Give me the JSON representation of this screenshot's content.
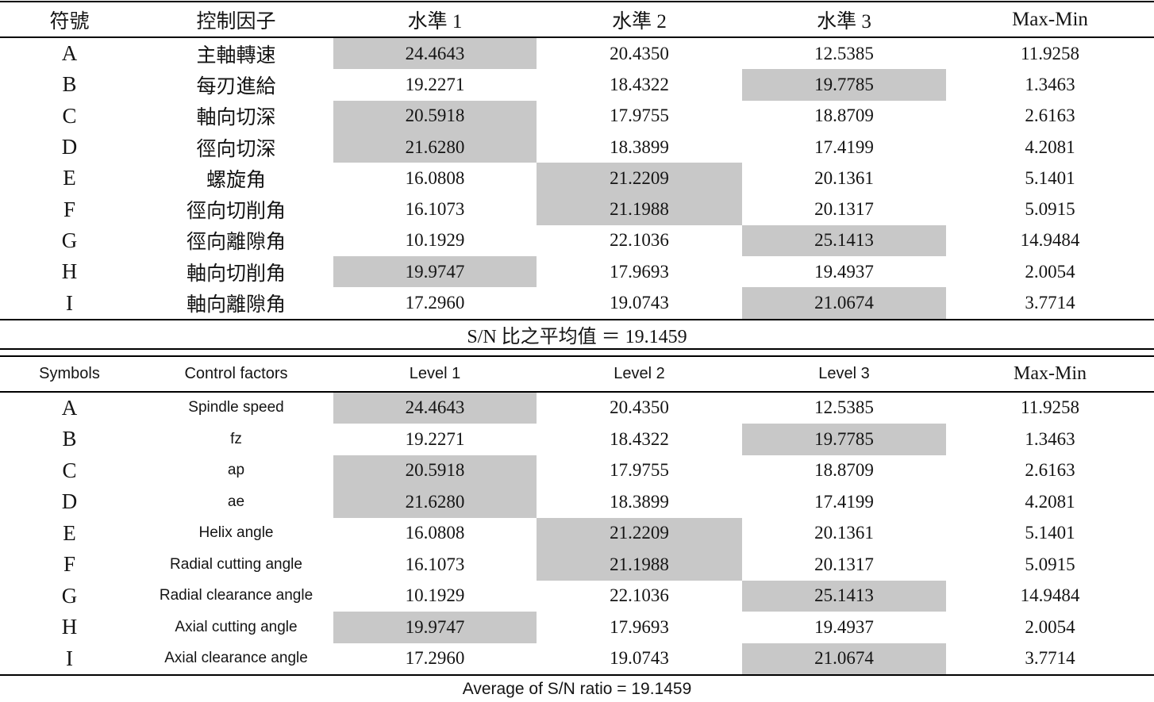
{
  "highlight_color": "#c8c8c8",
  "tables": {
    "cn": {
      "headers": [
        "符號",
        "控制因子",
        "水準 1",
        "水準 2",
        "水準 3",
        "Max-Min"
      ],
      "rows": [
        {
          "symbol": "A",
          "factor": "主軸轉速",
          "levels": [
            "24.4643",
            "20.4350",
            "12.5385"
          ],
          "max_min": "11.9258",
          "highlight_level": 1
        },
        {
          "symbol": "B",
          "factor": "每刃進給",
          "levels": [
            "19.2271",
            "18.4322",
            "19.7785"
          ],
          "max_min": "1.3463",
          "highlight_level": 3
        },
        {
          "symbol": "C",
          "factor": "軸向切深",
          "levels": [
            "20.5918",
            "17.9755",
            "18.8709"
          ],
          "max_min": "2.6163",
          "highlight_level": 1
        },
        {
          "symbol": "D",
          "factor": "徑向切深",
          "levels": [
            "21.6280",
            "18.3899",
            "17.4199"
          ],
          "max_min": "4.2081",
          "highlight_level": 1
        },
        {
          "symbol": "E",
          "factor": "螺旋角",
          "levels": [
            "16.0808",
            "21.2209",
            "20.1361"
          ],
          "max_min": "5.1401",
          "highlight_level": 2
        },
        {
          "symbol": "F",
          "factor": "徑向切削角",
          "levels": [
            "16.1073",
            "21.1988",
            "20.1317"
          ],
          "max_min": "5.0915",
          "highlight_level": 2
        },
        {
          "symbol": "G",
          "factor": "徑向離隙角",
          "levels": [
            "10.1929",
            "22.1036",
            "25.1413"
          ],
          "max_min": "14.9484",
          "highlight_level": 3
        },
        {
          "symbol": "H",
          "factor": "軸向切削角",
          "levels": [
            "19.9747",
            "17.9693",
            "19.4937"
          ],
          "max_min": "2.0054",
          "highlight_level": 1
        },
        {
          "symbol": "I",
          "factor": "軸向離隙角",
          "levels": [
            "17.2960",
            "19.0743",
            "21.0674"
          ],
          "max_min": "3.7714",
          "highlight_level": 3
        }
      ],
      "footer": "S/N 比之平均值 ＝ 19.1459"
    },
    "en": {
      "headers": [
        "Symbols",
        "Control factors",
        "Level 1",
        "Level 2",
        "Level 3",
        "Max-Min"
      ],
      "rows": [
        {
          "symbol": "A",
          "factor": "Spindle speed",
          "levels": [
            "24.4643",
            "20.4350",
            "12.5385"
          ],
          "max_min": "11.9258",
          "highlight_level": 1
        },
        {
          "symbol": "B",
          "factor": "fz",
          "levels": [
            "19.2271",
            "18.4322",
            "19.7785"
          ],
          "max_min": "1.3463",
          "highlight_level": 3
        },
        {
          "symbol": "C",
          "factor": "ap",
          "levels": [
            "20.5918",
            "17.9755",
            "18.8709"
          ],
          "max_min": "2.6163",
          "highlight_level": 1
        },
        {
          "symbol": "D",
          "factor": "ae",
          "levels": [
            "21.6280",
            "18.3899",
            "17.4199"
          ],
          "max_min": "4.2081",
          "highlight_level": 1
        },
        {
          "symbol": "E",
          "factor": "Helix angle",
          "levels": [
            "16.0808",
            "21.2209",
            "20.1361"
          ],
          "max_min": "5.1401",
          "highlight_level": 2
        },
        {
          "symbol": "F",
          "factor": "Radial cutting angle",
          "levels": [
            "16.1073",
            "21.1988",
            "20.1317"
          ],
          "max_min": "5.0915",
          "highlight_level": 2
        },
        {
          "symbol": "G",
          "factor": "Radial clearance angle",
          "levels": [
            "10.1929",
            "22.1036",
            "25.1413"
          ],
          "max_min": "14.9484",
          "highlight_level": 3
        },
        {
          "symbol": "H",
          "factor": "Axial cutting angle",
          "levels": [
            "19.9747",
            "17.9693",
            "19.4937"
          ],
          "max_min": "2.0054",
          "highlight_level": 1
        },
        {
          "symbol": "I",
          "factor": "Axial clearance angle",
          "levels": [
            "17.2960",
            "19.0743",
            "21.0674"
          ],
          "max_min": "3.7714",
          "highlight_level": 3
        }
      ],
      "footer": "Average of S/N ratio = 19.1459"
    }
  }
}
